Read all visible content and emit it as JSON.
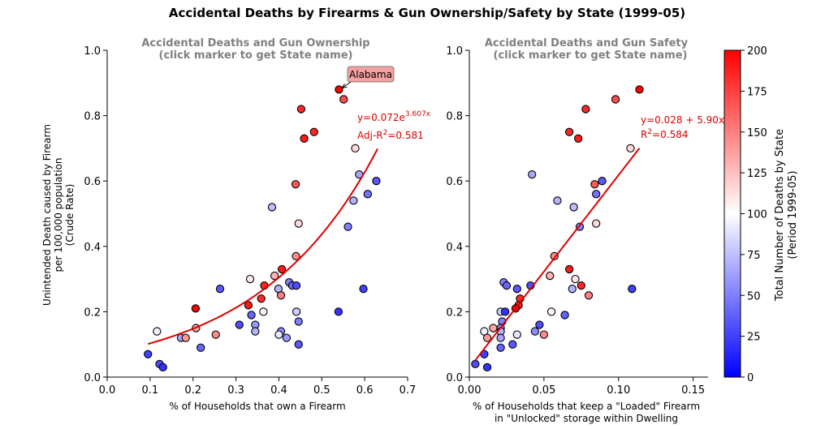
{
  "suptitle": "Accidental Deaths by Firearms & Gun Ownership/Safety by State (1999-05)",
  "colorbar": {
    "label_line1": "Total Number of Deaths by State",
    "label_line2": "(Period 1999-05)",
    "min": 0,
    "max": 200,
    "ticks": [
      "0",
      "25",
      "50",
      "75",
      "100",
      "125",
      "150",
      "175",
      "200"
    ],
    "colors": {
      "low": "#0000ff",
      "mid": "#ffffff",
      "high": "#ff0000"
    }
  },
  "chart_data": [
    {
      "type": "scatter",
      "title_line1": "Accidental Deaths and Gun Ownership",
      "title_line2": "(click marker to get State name)",
      "xlabel": "% of Households that own a Firearm",
      "ylabel_line1": "Unintended Death caused by Firearm",
      "ylabel_line2": "per 100,000 population",
      "ylabel_line3": "(Crude Rate)",
      "xlim": [
        0,
        0.7
      ],
      "ylim": [
        0,
        1.0
      ],
      "x_ticks": [
        "0.0",
        "0.1",
        "0.2",
        "0.3",
        "0.4",
        "0.5",
        "0.6",
        "0.7"
      ],
      "y_ticks": [
        "0.0",
        "0.2",
        "0.4",
        "0.6",
        "0.8",
        "1.0"
      ],
      "fit": {
        "kind": "exp",
        "a": 0.072,
        "b": 3.607,
        "x_range": [
          0.095,
          0.63
        ],
        "eq_prefix": "y=0.072e",
        "eq_exp": "3.607x",
        "r2_prefix": "Adj-R",
        "r2_value": "=0.581",
        "color": "#dd0000"
      },
      "annotation": {
        "text": "Alabama",
        "x": 0.54,
        "y": 0.88
      },
      "points": [
        {
          "x": 0.54,
          "y": 0.88,
          "deaths": 200
        },
        {
          "x": 0.452,
          "y": 0.82,
          "deaths": 185
        },
        {
          "x": 0.551,
          "y": 0.85,
          "deaths": 170
        },
        {
          "x": 0.482,
          "y": 0.75,
          "deaths": 185
        },
        {
          "x": 0.459,
          "y": 0.73,
          "deaths": 190
        },
        {
          "x": 0.578,
          "y": 0.7,
          "deaths": 115
        },
        {
          "x": 0.587,
          "y": 0.62,
          "deaths": 65
        },
        {
          "x": 0.627,
          "y": 0.6,
          "deaths": 35
        },
        {
          "x": 0.439,
          "y": 0.59,
          "deaths": 165
        },
        {
          "x": 0.607,
          "y": 0.56,
          "deaths": 45
        },
        {
          "x": 0.574,
          "y": 0.54,
          "deaths": 70
        },
        {
          "x": 0.384,
          "y": 0.52,
          "deaths": 75
        },
        {
          "x": 0.446,
          "y": 0.47,
          "deaths": 115
        },
        {
          "x": 0.561,
          "y": 0.46,
          "deaths": 50
        },
        {
          "x": 0.44,
          "y": 0.37,
          "deaths": 145
        },
        {
          "x": 0.407,
          "y": 0.33,
          "deaths": 190
        },
        {
          "x": 0.39,
          "y": 0.31,
          "deaths": 130
        },
        {
          "x": 0.333,
          "y": 0.3,
          "deaths": 110
        },
        {
          "x": 0.424,
          "y": 0.29,
          "deaths": 50
        },
        {
          "x": 0.366,
          "y": 0.28,
          "deaths": 185
        },
        {
          "x": 0.431,
          "y": 0.28,
          "deaths": 40
        },
        {
          "x": 0.441,
          "y": 0.28,
          "deaths": 30
        },
        {
          "x": 0.399,
          "y": 0.27,
          "deaths": 70
        },
        {
          "x": 0.263,
          "y": 0.27,
          "deaths": 35
        },
        {
          "x": 0.597,
          "y": 0.27,
          "deaths": 25
        },
        {
          "x": 0.359,
          "y": 0.24,
          "deaths": 185
        },
        {
          "x": 0.405,
          "y": 0.25,
          "deaths": 150
        },
        {
          "x": 0.329,
          "y": 0.22,
          "deaths": 190
        },
        {
          "x": 0.206,
          "y": 0.21,
          "deaths": 200
        },
        {
          "x": 0.364,
          "y": 0.2,
          "deaths": 105
        },
        {
          "x": 0.441,
          "y": 0.2,
          "deaths": 80
        },
        {
          "x": 0.539,
          "y": 0.2,
          "deaths": 20
        },
        {
          "x": 0.336,
          "y": 0.19,
          "deaths": 40
        },
        {
          "x": 0.446,
          "y": 0.17,
          "deaths": 50
        },
        {
          "x": 0.308,
          "y": 0.16,
          "deaths": 30
        },
        {
          "x": 0.345,
          "y": 0.16,
          "deaths": 60
        },
        {
          "x": 0.207,
          "y": 0.15,
          "deaths": 135
        },
        {
          "x": 0.116,
          "y": 0.14,
          "deaths": 95
        },
        {
          "x": 0.345,
          "y": 0.14,
          "deaths": 70
        },
        {
          "x": 0.405,
          "y": 0.14,
          "deaths": 55
        },
        {
          "x": 0.4,
          "y": 0.13,
          "deaths": 90
        },
        {
          "x": 0.253,
          "y": 0.13,
          "deaths": 145
        },
        {
          "x": 0.172,
          "y": 0.12,
          "deaths": 65
        },
        {
          "x": 0.183,
          "y": 0.12,
          "deaths": 140
        },
        {
          "x": 0.418,
          "y": 0.12,
          "deaths": 60
        },
        {
          "x": 0.446,
          "y": 0.1,
          "deaths": 35
        },
        {
          "x": 0.218,
          "y": 0.09,
          "deaths": 40
        },
        {
          "x": 0.095,
          "y": 0.07,
          "deaths": 25
        },
        {
          "x": 0.122,
          "y": 0.04,
          "deaths": 30
        },
        {
          "x": 0.13,
          "y": 0.03,
          "deaths": 20
        }
      ]
    },
    {
      "type": "scatter",
      "title_line1": "Accidental Deaths and Gun Safety",
      "title_line2": "(click marker to get State name)",
      "xlabel_line1": "% of Households that keep a \"Loaded\" Firearm",
      "xlabel_line2": "in \"Unlocked\" storage within Dwelling",
      "xlim": [
        0,
        0.16
      ],
      "ylim": [
        0,
        1.0
      ],
      "x_ticks": [
        "0.00",
        "0.05",
        "0.10",
        "0.15"
      ],
      "y_ticks": [
        "0.0",
        "0.2",
        "0.4",
        "0.6",
        "0.8",
        "1.0"
      ],
      "fit": {
        "kind": "linear",
        "a": 0.028,
        "b": 5.9,
        "x_range": [
          0.004,
          0.114
        ],
        "eq_text": "y=0.028 + 5.90x",
        "r2_prefix": "R",
        "r2_value": "=0.584",
        "color": "#dd0000"
      },
      "points": [
        {
          "x": 0.114,
          "y": 0.88,
          "deaths": 200
        },
        {
          "x": 0.078,
          "y": 0.82,
          "deaths": 185
        },
        {
          "x": 0.098,
          "y": 0.85,
          "deaths": 170
        },
        {
          "x": 0.067,
          "y": 0.75,
          "deaths": 185
        },
        {
          "x": 0.073,
          "y": 0.73,
          "deaths": 190
        },
        {
          "x": 0.108,
          "y": 0.7,
          "deaths": 115
        },
        {
          "x": 0.042,
          "y": 0.62,
          "deaths": 65
        },
        {
          "x": 0.089,
          "y": 0.6,
          "deaths": 35
        },
        {
          "x": 0.084,
          "y": 0.59,
          "deaths": 165
        },
        {
          "x": 0.085,
          "y": 0.56,
          "deaths": 45
        },
        {
          "x": 0.059,
          "y": 0.54,
          "deaths": 70
        },
        {
          "x": 0.07,
          "y": 0.52,
          "deaths": 75
        },
        {
          "x": 0.085,
          "y": 0.47,
          "deaths": 115
        },
        {
          "x": 0.074,
          "y": 0.46,
          "deaths": 50
        },
        {
          "x": 0.057,
          "y": 0.37,
          "deaths": 145
        },
        {
          "x": 0.067,
          "y": 0.33,
          "deaths": 190
        },
        {
          "x": 0.054,
          "y": 0.31,
          "deaths": 130
        },
        {
          "x": 0.071,
          "y": 0.3,
          "deaths": 110
        },
        {
          "x": 0.023,
          "y": 0.29,
          "deaths": 50
        },
        {
          "x": 0.075,
          "y": 0.28,
          "deaths": 185
        },
        {
          "x": 0.025,
          "y": 0.28,
          "deaths": 40
        },
        {
          "x": 0.041,
          "y": 0.28,
          "deaths": 30
        },
        {
          "x": 0.069,
          "y": 0.27,
          "deaths": 70
        },
        {
          "x": 0.032,
          "y": 0.27,
          "deaths": 35
        },
        {
          "x": 0.109,
          "y": 0.27,
          "deaths": 25
        },
        {
          "x": 0.034,
          "y": 0.24,
          "deaths": 185
        },
        {
          "x": 0.08,
          "y": 0.25,
          "deaths": 150
        },
        {
          "x": 0.033,
          "y": 0.22,
          "deaths": 190
        },
        {
          "x": 0.031,
          "y": 0.21,
          "deaths": 200
        },
        {
          "x": 0.055,
          "y": 0.2,
          "deaths": 105
        },
        {
          "x": 0.021,
          "y": 0.2,
          "deaths": 80
        },
        {
          "x": 0.024,
          "y": 0.2,
          "deaths": 20
        },
        {
          "x": 0.064,
          "y": 0.19,
          "deaths": 40
        },
        {
          "x": 0.022,
          "y": 0.17,
          "deaths": 50
        },
        {
          "x": 0.047,
          "y": 0.16,
          "deaths": 30
        },
        {
          "x": 0.021,
          "y": 0.15,
          "deaths": 60
        },
        {
          "x": 0.016,
          "y": 0.15,
          "deaths": 135
        },
        {
          "x": 0.01,
          "y": 0.14,
          "deaths": 95
        },
        {
          "x": 0.021,
          "y": 0.14,
          "deaths": 70
        },
        {
          "x": 0.044,
          "y": 0.14,
          "deaths": 55
        },
        {
          "x": 0.032,
          "y": 0.13,
          "deaths": 90
        },
        {
          "x": 0.05,
          "y": 0.13,
          "deaths": 145
        },
        {
          "x": 0.021,
          "y": 0.12,
          "deaths": 65
        },
        {
          "x": 0.012,
          "y": 0.12,
          "deaths": 140
        },
        {
          "x": 0.029,
          "y": 0.1,
          "deaths": 35
        },
        {
          "x": 0.021,
          "y": 0.09,
          "deaths": 40
        },
        {
          "x": 0.01,
          "y": 0.07,
          "deaths": 25
        },
        {
          "x": 0.004,
          "y": 0.04,
          "deaths": 30
        },
        {
          "x": 0.012,
          "y": 0.03,
          "deaths": 20
        }
      ]
    }
  ]
}
